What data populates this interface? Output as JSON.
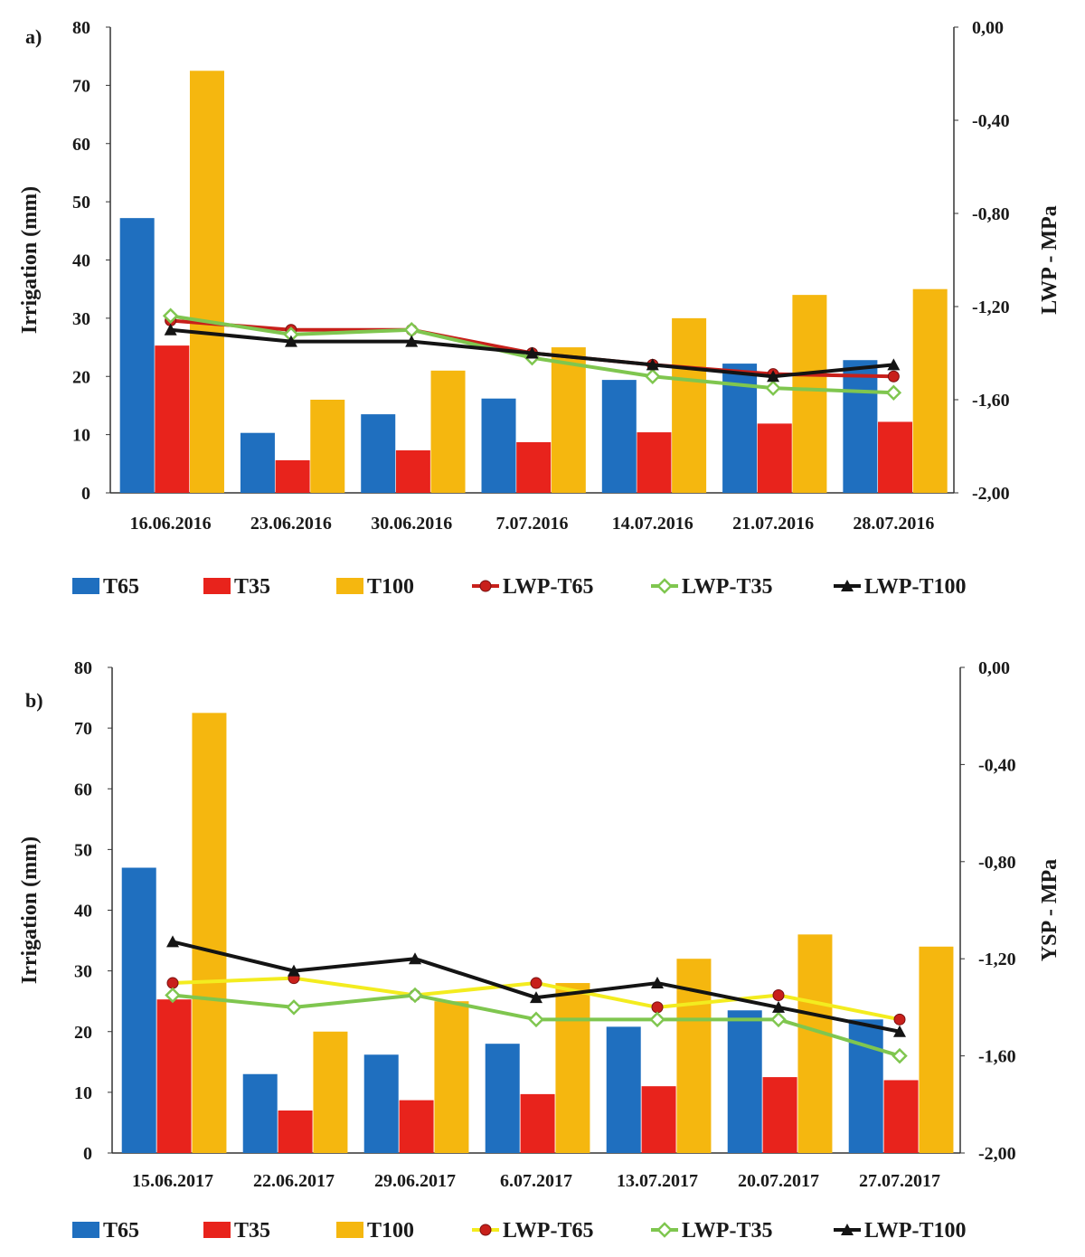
{
  "chart_data": [
    {
      "type": "bar+line",
      "panel_label": "a)",
      "categories": [
        "16.06.2016",
        "23.06.2016",
        "30.06.2016",
        "7.07.2016",
        "14.07.2016",
        "21.07.2016",
        "28.07.2016"
      ],
      "y_left": {
        "label": "Irrigation (mm)",
        "lim": [
          0,
          80
        ],
        "ticks": [
          0,
          10,
          20,
          30,
          40,
          50,
          60,
          70,
          80
        ],
        "tick_labels": [
          "0",
          "10",
          "20",
          "30",
          "40",
          "50",
          "60",
          "70",
          "80"
        ]
      },
      "y_right": {
        "label": "LWP - MPa",
        "lim": [
          -2.0,
          0.0
        ],
        "ticks": [
          0.0,
          -0.4,
          -0.8,
          -1.2,
          -1.6,
          -2.0
        ],
        "tick_labels": [
          "0,00",
          "-0,40",
          "-0,80",
          "-1,20",
          "-1,60",
          "-2,00"
        ]
      },
      "bar_series": [
        {
          "name": "T65",
          "color": "#1f6fbf",
          "values": [
            47.2,
            10.3,
            13.5,
            16.2,
            19.4,
            22.2,
            22.8
          ]
        },
        {
          "name": "T35",
          "color": "#e8231c",
          "values": [
            25.3,
            5.6,
            7.3,
            8.7,
            10.4,
            11.9,
            12.2
          ]
        },
        {
          "name": "T100",
          "color": "#f5b70f",
          "values": [
            72.5,
            16.0,
            21.0,
            25.0,
            30.0,
            34.0,
            35.0
          ]
        }
      ],
      "line_series": [
        {
          "name": "LWP-T65",
          "color": "#c8201b",
          "marker": "circle",
          "values": [
            -1.26,
            -1.3,
            -1.3,
            -1.4,
            -1.45,
            -1.49,
            -1.5
          ]
        },
        {
          "name": "LWP-T35",
          "color": "#7fc64f",
          "marker": "diamond",
          "values": [
            -1.24,
            -1.32,
            -1.3,
            -1.42,
            -1.5,
            -1.55,
            -1.57
          ]
        },
        {
          "name": "LWP-T100",
          "color": "#141414",
          "marker": "triangle",
          "values": [
            -1.3,
            -1.35,
            -1.35,
            -1.4,
            -1.45,
            -1.5,
            -1.45
          ]
        }
      ],
      "legend": [
        "T65",
        "T35",
        "T100",
        "LWP-T65",
        "LWP-T35",
        "LWP-T100"
      ],
      "legend_position": "bottom"
    },
    {
      "type": "bar+line",
      "panel_label": "b)",
      "categories": [
        "15.06.2017",
        "22.06.2017",
        "29.06.2017",
        "6.07.2017",
        "13.07.2017",
        "20.07.2017",
        "27.07.2017"
      ],
      "y_left": {
        "label": "Irrigation (mm)",
        "lim": [
          0,
          80
        ],
        "ticks": [
          0,
          10,
          20,
          30,
          40,
          50,
          60,
          70,
          80
        ],
        "tick_labels": [
          "0",
          "10",
          "20",
          "30",
          "40",
          "50",
          "60",
          "70",
          "80"
        ]
      },
      "y_right": {
        "label": "YSP - MPa",
        "lim": [
          -2.0,
          0.0
        ],
        "ticks": [
          0.0,
          -0.4,
          -0.8,
          -1.2,
          -1.6,
          -2.0
        ],
        "tick_labels": [
          "0,00",
          "-0,40",
          "-0,80",
          "-1,20",
          "-1,60",
          "-2,00"
        ]
      },
      "bar_series": [
        {
          "name": "T65",
          "color": "#1f6fbf",
          "values": [
            47.0,
            13.0,
            16.2,
            18.0,
            20.8,
            23.5,
            22.0
          ]
        },
        {
          "name": "T35",
          "color": "#e8231c",
          "values": [
            25.3,
            7.0,
            8.7,
            9.7,
            11.0,
            12.5,
            12.0
          ]
        },
        {
          "name": "T100",
          "color": "#f5b70f",
          "values": [
            72.5,
            20.0,
            25.0,
            28.0,
            32.0,
            36.0,
            34.0
          ]
        }
      ],
      "line_series": [
        {
          "name": "LWP-T65",
          "color": "#f3ec1f",
          "marker_color": "#c8201b",
          "marker": "circle",
          "values": [
            -1.3,
            -1.28,
            -1.35,
            -1.3,
            -1.4,
            -1.35,
            -1.45
          ]
        },
        {
          "name": "LWP-T35",
          "color": "#7fc64f",
          "marker": "diamond",
          "values": [
            -1.35,
            -1.4,
            -1.35,
            -1.45,
            -1.45,
            -1.45,
            -1.6
          ]
        },
        {
          "name": "LWP-T100",
          "color": "#141414",
          "marker": "triangle",
          "values": [
            -1.13,
            -1.25,
            -1.2,
            -1.36,
            -1.3,
            -1.4,
            -1.5
          ]
        }
      ],
      "legend": [
        "T65",
        "T35",
        "T100",
        "LWP-T65",
        "LWP-T35",
        "LWP-T100"
      ],
      "legend_position": "bottom"
    }
  ]
}
